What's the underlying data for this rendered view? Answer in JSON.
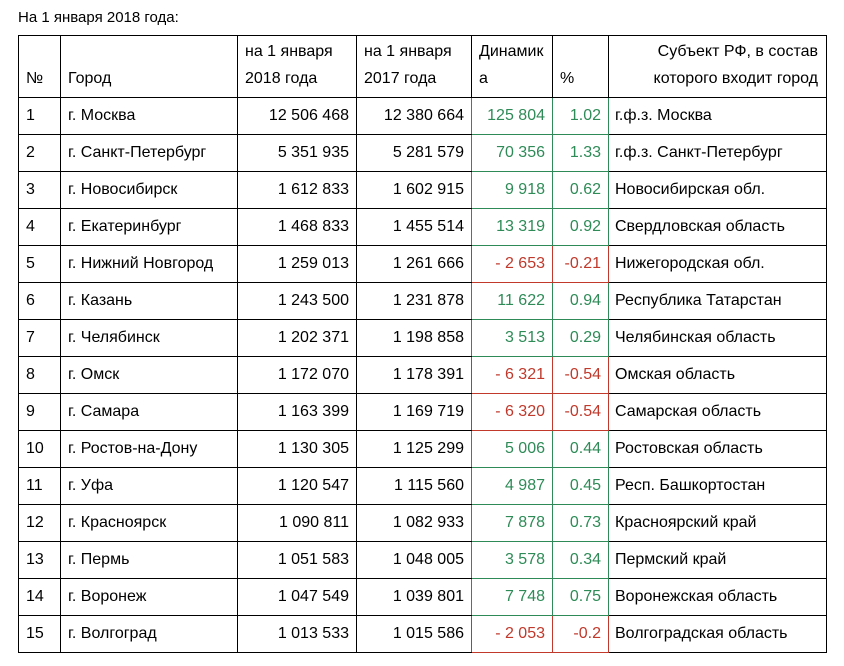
{
  "title": "На 1 января 2018 года:",
  "colors": {
    "positive": "#2e8b57",
    "negative": "#c0392b",
    "grid": "#000000",
    "text": "#000000"
  },
  "table": {
    "headers": {
      "num": "№",
      "city": "Город",
      "pop2018": "на 1 января 2018 года",
      "pop2017": "на 1 января 2017 года",
      "dynamics": "Динамика",
      "percent": "%",
      "subject": "Субъект РФ, в состав которого входит город"
    },
    "rows": [
      {
        "num": "1",
        "city": "г. Москва",
        "pop2018": "12 506 468",
        "pop2017": "12 380 664",
        "dynamics": "125 804",
        "percent": "1.02",
        "subject": "г.ф.з. Москва",
        "trend": "up"
      },
      {
        "num": "2",
        "city": "г. Санкт-Петербург",
        "pop2018": "5 351 935",
        "pop2017": "5 281 579",
        "dynamics": "70 356",
        "percent": "1.33",
        "subject": "г.ф.з. Санкт-Петербург",
        "trend": "up"
      },
      {
        "num": "3",
        "city": "г. Новосибирск",
        "pop2018": "1 612 833",
        "pop2017": "1 602 915",
        "dynamics": "9 918",
        "percent": "0.62",
        "subject": "Новосибирская обл.",
        "trend": "up"
      },
      {
        "num": "4",
        "city": "г. Екатеринбург",
        "pop2018": "1 468 833",
        "pop2017": "1 455 514",
        "dynamics": "13 319",
        "percent": "0.92",
        "subject": "Свердловская область",
        "trend": "up"
      },
      {
        "num": "5",
        "city": "г. Нижний Новгород",
        "pop2018": "1 259 013",
        "pop2017": "1 261 666",
        "dynamics": "- 2 653",
        "percent": "-0.21",
        "subject": "Нижегородская обл.",
        "trend": "down"
      },
      {
        "num": "6",
        "city": "г. Казань",
        "pop2018": "1 243 500",
        "pop2017": "1 231 878",
        "dynamics": "11 622",
        "percent": "0.94",
        "subject": "Республика Татарстан",
        "trend": "up"
      },
      {
        "num": "7",
        "city": "г. Челябинск",
        "pop2018": "1 202 371",
        "pop2017": "1 198 858",
        "dynamics": "3 513",
        "percent": "0.29",
        "subject": "Челябинская область",
        "trend": "up"
      },
      {
        "num": "8",
        "city": "г. Омск",
        "pop2018": "1 172 070",
        "pop2017": "1 178 391",
        "dynamics": "- 6 321",
        "percent": "-0.54",
        "subject": "Омская область",
        "trend": "down"
      },
      {
        "num": "9",
        "city": "г. Самара",
        "pop2018": "1 163 399",
        "pop2017": "1 169 719",
        "dynamics": "- 6 320",
        "percent": "-0.54",
        "subject": "Самарская область",
        "trend": "down"
      },
      {
        "num": "10",
        "city": "г. Ростов-на-Дону",
        "pop2018": "1 130 305",
        "pop2017": "1 125 299",
        "dynamics": "5 006",
        "percent": "0.44",
        "subject": "Ростовская область",
        "trend": "up"
      },
      {
        "num": "11",
        "city": "г. Уфа",
        "pop2018": "1 120 547",
        "pop2017": "1 115 560",
        "dynamics": "4 987",
        "percent": "0.45",
        "subject": "Респ. Башкортостан",
        "trend": "up"
      },
      {
        "num": "12",
        "city": "г. Красноярск",
        "pop2018": "1 090 811",
        "pop2017": "1 082 933",
        "dynamics": "7 878",
        "percent": "0.73",
        "subject": "Красноярский край",
        "trend": "up"
      },
      {
        "num": "13",
        "city": "г. Пермь",
        "pop2018": "1 051 583",
        "pop2017": "1 048 005",
        "dynamics": "3 578",
        "percent": "0.34",
        "subject": "Пермский край",
        "trend": "up"
      },
      {
        "num": "14",
        "city": "г. Воронеж",
        "pop2018": "1 047 549",
        "pop2017": "1 039 801",
        "dynamics": "7 748",
        "percent": "0.75",
        "subject": "Воронежская область",
        "trend": "up"
      },
      {
        "num": "15",
        "city": "г. Волгоград",
        "pop2018": "1 013 533",
        "pop2017": "1 015 586",
        "dynamics": "- 2 053",
        "percent": "-0.2",
        "subject": "Волгоградская область",
        "trend": "down"
      }
    ]
  }
}
